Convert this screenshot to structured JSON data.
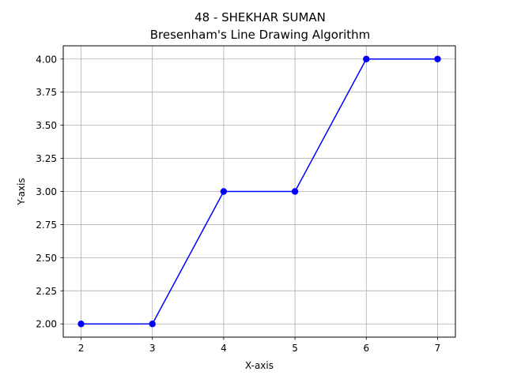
{
  "chart_data": {
    "type": "line",
    "title": "48 - SHEKHAR SUMAN",
    "subtitle": "Bresenham's Line Drawing Algorithm",
    "xlabel": "X-axis",
    "ylabel": "Y-axis",
    "x": [
      2,
      3,
      4,
      5,
      6,
      7
    ],
    "series": [
      {
        "values": [
          2,
          2,
          3,
          3,
          4,
          4
        ],
        "color": "#0000ff",
        "marker": "circle"
      }
    ],
    "xlim": [
      1.75,
      7.25
    ],
    "ylim": [
      1.9,
      4.1
    ],
    "xticks": [
      2,
      3,
      4,
      5,
      6,
      7
    ],
    "xtick_labels": [
      "2",
      "3",
      "4",
      "5",
      "6",
      "7"
    ],
    "yticks": [
      2.0,
      2.25,
      2.5,
      2.75,
      3.0,
      3.25,
      3.5,
      3.75,
      4.0
    ],
    "ytick_labels": [
      "2.00",
      "2.25",
      "2.50",
      "2.75",
      "3.00",
      "3.25",
      "3.50",
      "3.75",
      "4.00"
    ],
    "grid": true,
    "grid_color": "#b0b0b0",
    "legend": "none"
  }
}
